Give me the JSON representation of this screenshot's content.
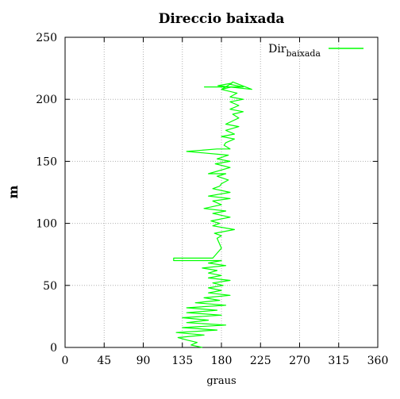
{
  "chart_data": {
    "type": "line",
    "title": "Direccio baixada",
    "xlabel": "graus",
    "ylabel": "m",
    "xlim": [
      0,
      360
    ],
    "ylim": [
      0,
      250
    ],
    "xticks": [
      0,
      45,
      90,
      135,
      180,
      225,
      270,
      315,
      360
    ],
    "yticks": [
      0,
      50,
      100,
      150,
      200,
      250
    ],
    "grid": true,
    "legend_position": "top-right",
    "series": [
      {
        "name": "Dirbaixada",
        "name_main": "Dir",
        "name_sub": "baixada",
        "color": "#00ff00",
        "x": [
          158,
          145,
          152,
          140,
          130,
          160,
          128,
          175,
          135,
          185,
          140,
          165,
          135,
          180,
          140,
          175,
          140,
          185,
          150,
          178,
          160,
          190,
          165,
          180,
          165,
          182,
          170,
          190,
          165,
          180,
          165,
          175,
          158,
          185,
          165,
          180,
          125,
          125,
          170,
          180,
          175,
          180,
          172,
          195,
          170,
          178,
          168,
          190,
          170,
          185,
          160,
          180,
          170,
          190,
          165,
          190,
          170,
          178,
          180,
          188,
          175,
          185,
          165,
          190,
          173,
          190,
          175,
          188,
          140,
          175,
          190,
          183,
          185,
          195,
          180,
          195,
          185,
          200,
          185,
          200,
          193,
          205,
          190,
          200,
          190,
          205,
          190,
          198,
          180,
          185,
          205,
          190,
          193,
          215,
          176,
          192,
          180,
          192,
          160
        ],
        "y": [
          0,
          2,
          4,
          6,
          8,
          10,
          12,
          14,
          16,
          18,
          20,
          22,
          24,
          26,
          28,
          30,
          32,
          34,
          36,
          38,
          40,
          42,
          44,
          46,
          48,
          50,
          52,
          54,
          56,
          58,
          60,
          62,
          64,
          66,
          68,
          70,
          70,
          72,
          72,
          80,
          88,
          90,
          92,
          95,
          98,
          100,
          102,
          105,
          108,
          110,
          112,
          115,
          118,
          120,
          122,
          125,
          128,
          130,
          132,
          135,
          138,
          140,
          140,
          145,
          148,
          150,
          152,
          155,
          158,
          160,
          160,
          163,
          165,
          168,
          170,
          172,
          175,
          178,
          180,
          185,
          188,
          190,
          192,
          195,
          198,
          200,
          202,
          205,
          208,
          210,
          210,
          212,
          214,
          208,
          211,
          213,
          208,
          210,
          210
        ]
      }
    ]
  }
}
